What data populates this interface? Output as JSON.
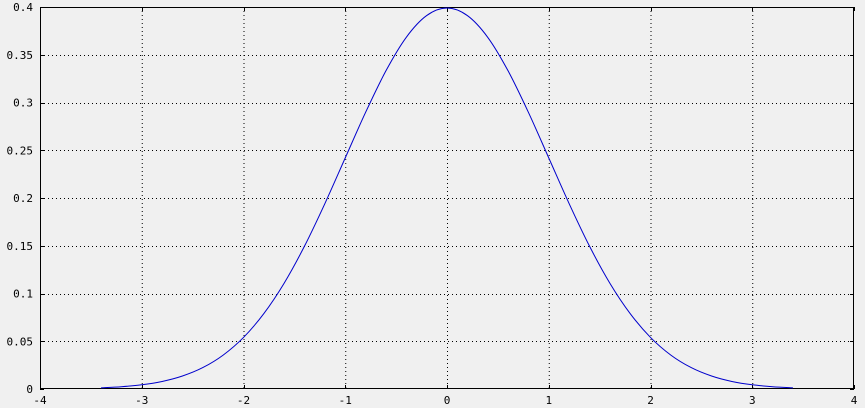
{
  "chart_data": {
    "type": "line",
    "title": "",
    "xlabel": "",
    "ylabel": "",
    "xlim": [
      -4,
      4
    ],
    "ylim": [
      0,
      0.4
    ],
    "grid": true,
    "x_ticks": [
      "-4",
      "-3",
      "-2",
      "-1",
      "0",
      "1",
      "2",
      "3",
      "4"
    ],
    "y_ticks": [
      "0",
      "0.05",
      "0.1",
      "0.15",
      "0.2",
      "0.25",
      "0.3",
      "0.35",
      "0.4"
    ],
    "series": [
      {
        "color": "#0000cc",
        "x": [
          -3.4,
          -3.2,
          -3.0,
          -2.8,
          -2.6,
          -2.4,
          -2.2,
          -2.0,
          -1.8,
          -1.6,
          -1.4,
          -1.2,
          -1.0,
          -0.8,
          -0.6,
          -0.4,
          -0.2,
          0.0,
          0.2,
          0.4,
          0.6,
          0.8,
          1.0,
          1.2,
          1.4,
          1.6,
          1.8,
          2.0,
          2.2,
          2.4,
          2.6,
          2.8,
          3.0,
          3.2,
          3.4
        ],
        "y": [
          0.0012,
          0.0024,
          0.0044,
          0.0079,
          0.0136,
          0.0224,
          0.0355,
          0.054,
          0.079,
          0.1109,
          0.1497,
          0.1942,
          0.242,
          0.2897,
          0.3332,
          0.3683,
          0.391,
          0.3989,
          0.391,
          0.3683,
          0.3332,
          0.2897,
          0.242,
          0.1942,
          0.1497,
          0.1109,
          0.079,
          0.054,
          0.0355,
          0.0224,
          0.0136,
          0.0079,
          0.0044,
          0.0024,
          0.0012
        ]
      }
    ]
  }
}
